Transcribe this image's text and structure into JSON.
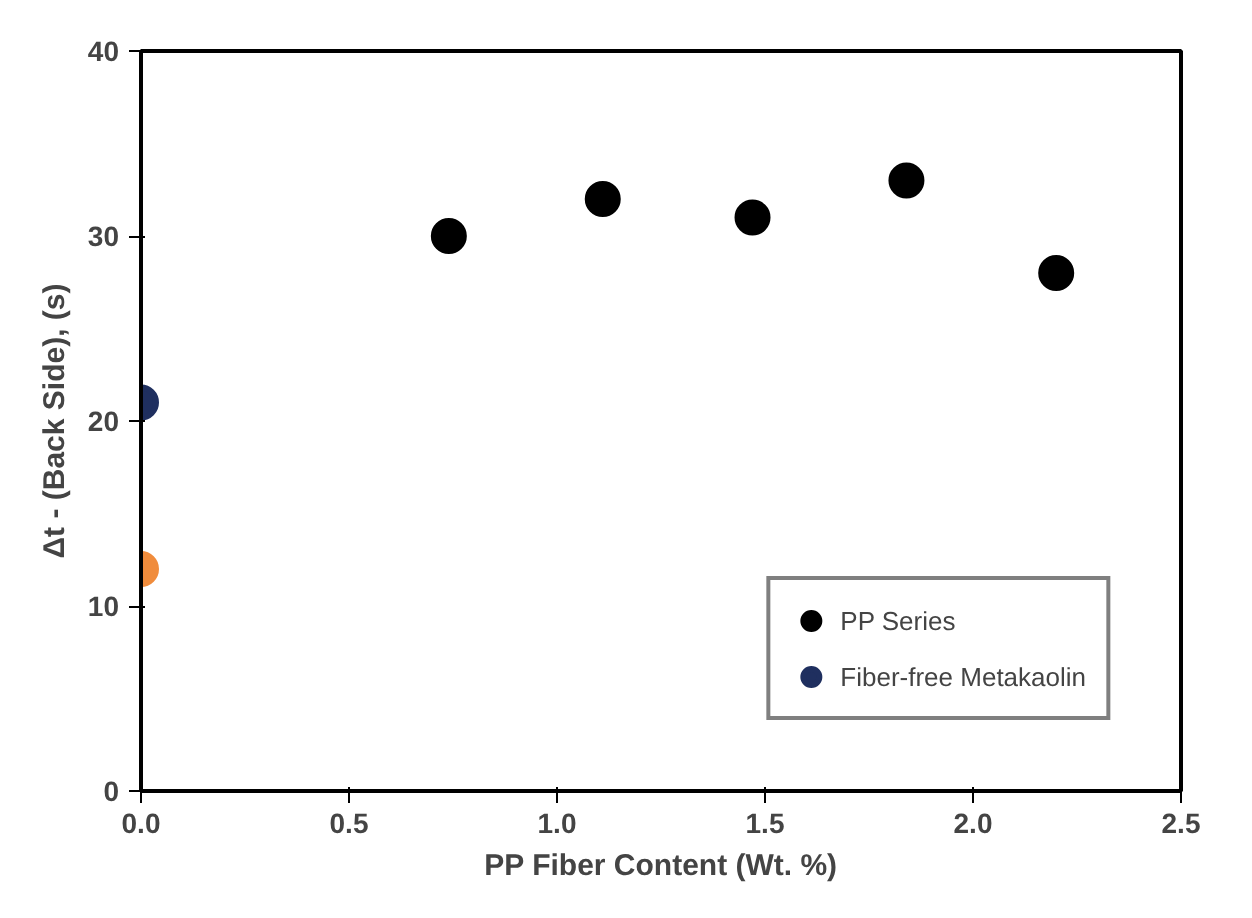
{
  "chart_data": {
    "type": "scatter",
    "xlabel": "PP Fiber Content (Wt. %)",
    "ylabel": "Δt - (Back Side), (s)",
    "xlim": [
      0,
      2.5
    ],
    "xticks": [
      {
        "value": 0,
        "label": "0.0"
      },
      {
        "value": 0.5,
        "label": "0.5"
      },
      {
        "value": 1,
        "label": "1.0"
      },
      {
        "value": 1.5,
        "label": "1.5"
      },
      {
        "value": 2,
        "label": "2.0"
      },
      {
        "value": 2.5,
        "label": "2.5"
      }
    ],
    "ylim": [
      0,
      40
    ],
    "yticks": [
      0,
      10,
      20,
      30,
      40
    ],
    "grid": false,
    "legend": "bottom right",
    "marker": "circle",
    "series": [
      {
        "name": "PP Series",
        "color": "#000000",
        "x": [
          0.74,
          1.11,
          1.47,
          1.84,
          2.2
        ],
        "values": [
          30,
          32,
          31,
          33,
          28
        ]
      },
      {
        "color": "#f08c3c",
        "x": [
          0
        ],
        "values": [
          12
        ]
      },
      {
        "name": "Fiber-free Metakaolin",
        "color": "#1f2f5f",
        "x": [
          0
        ],
        "values": [
          21
        ]
      }
    ]
  }
}
